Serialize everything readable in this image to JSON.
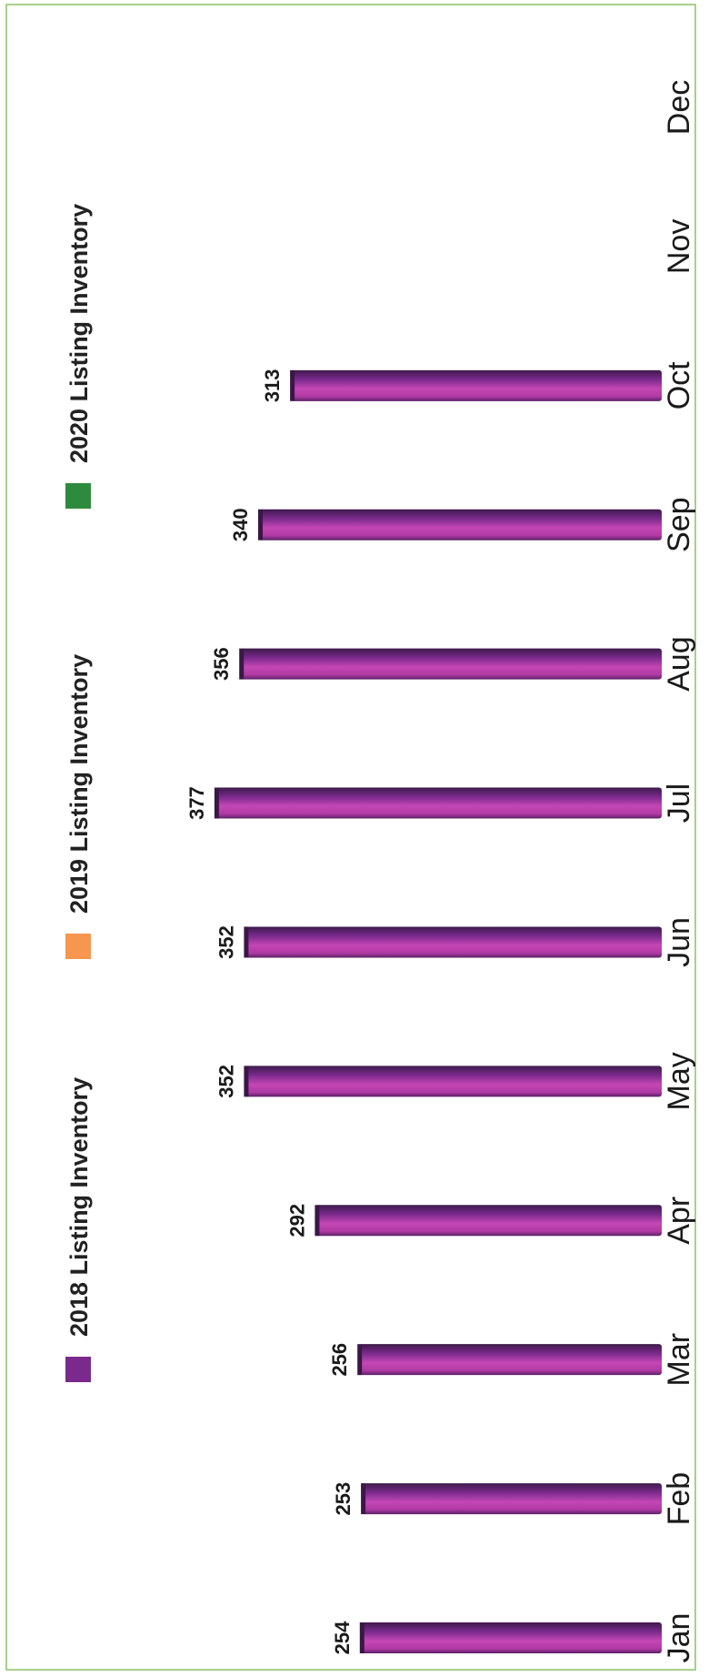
{
  "chart_data": {
    "type": "bar",
    "orientation": "rotated-90",
    "categories": [
      "Jan",
      "Feb",
      "Mar",
      "Apr",
      "May",
      "Jun",
      "Jul",
      "Aug",
      "Sep",
      "Oct",
      "Nov",
      "Dec"
    ],
    "series": [
      {
        "name": "2018 Listing Inventory",
        "color": "#7a2a8c",
        "values": [
          254,
          253,
          256,
          292,
          352,
          352,
          377,
          356,
          340,
          313,
          null,
          null
        ]
      },
      {
        "name": "2019 Listing Inventory",
        "color": "#f7964f",
        "values": [
          null,
          null,
          null,
          null,
          null,
          null,
          null,
          null,
          null,
          null,
          null,
          null
        ]
      },
      {
        "name": "2020 Listing Inventory",
        "color": "#2e8b3e",
        "values": [
          null,
          null,
          null,
          null,
          null,
          null,
          null,
          null,
          null,
          null,
          null,
          null
        ]
      }
    ],
    "data_labels": [
      "254",
      "253",
      "256",
      "292",
      "352",
      "352",
      "377",
      "356",
      "340",
      "313"
    ],
    "ylim": [
      0,
      400
    ],
    "grid": false,
    "legend_position": "left"
  },
  "colors": {
    "frame_border": "#a7d08c",
    "bar_dark": "#4a1c58",
    "bar_mid": "#b63aa8",
    "bar_light": "#d456c6"
  }
}
